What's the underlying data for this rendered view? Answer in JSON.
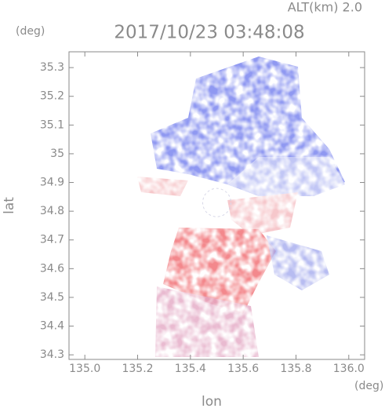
{
  "chart_data": {
    "type": "radar-field",
    "title": "2017/10/23 03:48:08",
    "subtitle": "ALT(km) 2.0",
    "x_unit": "(deg)",
    "y_unit": "(deg)",
    "x_label": "lon",
    "y_label": "lat",
    "xlim": [
      134.94,
      136.06
    ],
    "ylim": [
      34.284,
      35.355
    ],
    "xticks": [
      {
        "value": 135.0,
        "label": "135.0"
      },
      135.2,
      135.4,
      135.6,
      135.8,
      {
        "value": 136.0,
        "label": "136.0"
      }
    ],
    "yticks": [
      34.3,
      34.4,
      34.5,
      34.6,
      34.7,
      34.8,
      34.9,
      35.0,
      35.1,
      35.2,
      35.3
    ]
  }
}
